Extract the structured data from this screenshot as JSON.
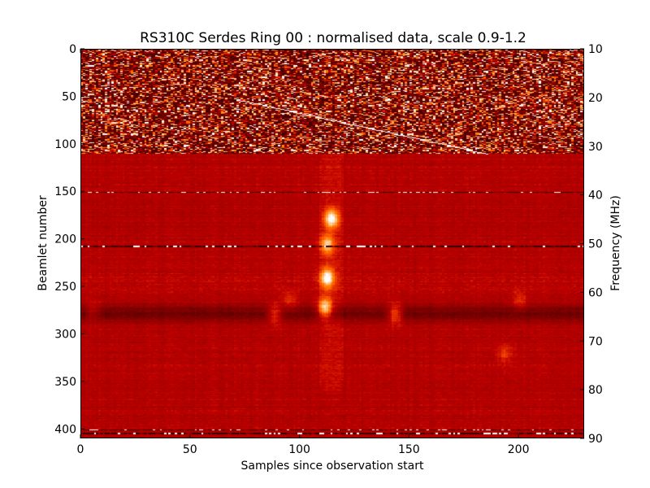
{
  "chart_data": {
    "type": "heatmap",
    "title": "RS310C Serdes Ring 00 : normalised data, scale 0.9-1.2",
    "xlabel": "Samples since observation start",
    "ylabel": "Beamlet number",
    "y2label": "Frequency (MHz)",
    "xlim": [
      0,
      230
    ],
    "ylim": [
      410,
      0
    ],
    "y2lim": [
      10,
      90
    ],
    "color_scale": [
      0.9,
      1.2
    ],
    "colormap": "gist_heat",
    "x_ticks": [
      "0",
      "50",
      "100",
      "150",
      "200"
    ],
    "x_tick_values": [
      0,
      50,
      100,
      150,
      200
    ],
    "y_ticks": [
      "0",
      "50",
      "100",
      "150",
      "200",
      "250",
      "300",
      "350",
      "400"
    ],
    "y_tick_values": [
      0,
      50,
      100,
      150,
      200,
      250,
      300,
      350,
      400
    ],
    "y2_ticks": [
      "10",
      "20",
      "30",
      "40",
      "50",
      "60",
      "70",
      "80",
      "90"
    ],
    "y2_tick_values": [
      10,
      20,
      30,
      40,
      50,
      60,
      70,
      80,
      90
    ],
    "features": {
      "noisy_band_beamlets": [
        0,
        110
      ],
      "strong_horizontal_band_beamlets": [
        265,
        290
      ],
      "bright_bursts": [
        {
          "sample": 114,
          "beamlet": 178,
          "value": 1.2
        },
        {
          "sample": 112,
          "beamlet": 205,
          "value": 1.15
        },
        {
          "sample": 112,
          "beamlet": 240,
          "value": 1.2
        },
        {
          "sample": 111,
          "beamlet": 272,
          "value": 1.2
        },
        {
          "sample": 88,
          "beamlet": 278,
          "value": 1.1
        },
        {
          "sample": 143,
          "beamlet": 278,
          "value": 1.12
        },
        {
          "sample": 95,
          "beamlet": 265,
          "value": 1.05
        },
        {
          "sample": 5,
          "beamlet": 275,
          "value": 1.05
        },
        {
          "sample": 200,
          "beamlet": 265,
          "value": 1.05
        },
        {
          "sample": 193,
          "beamlet": 320,
          "value": 1.05
        }
      ],
      "drifting_line": {
        "from_sample": 70,
        "from_beamlet": 52,
        "to_sample": 185,
        "to_beamlet": 110
      }
    }
  }
}
